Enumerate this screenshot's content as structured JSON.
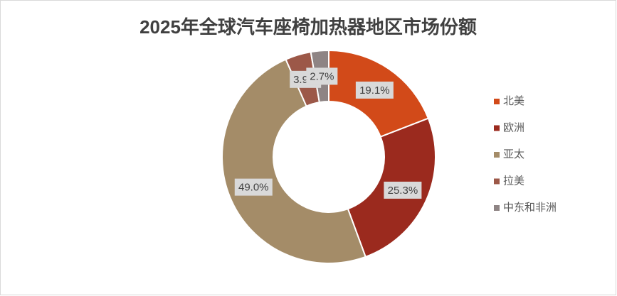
{
  "chart_data": {
    "type": "donut",
    "title": "2025年全球汽车座椅加热器地区市场份额",
    "categories": [
      "北美",
      "欧洲",
      "亚太",
      "拉美",
      "中东和非洲"
    ],
    "series": [
      {
        "name": "市场份额",
        "values": [
          19.1,
          25.3,
          49.0,
          3.9,
          2.7
        ],
        "value_labels": [
          "19.1%",
          "25.3%",
          "49.0%",
          "3.9%",
          "2.7%"
        ]
      }
    ],
    "colors": [
      "#d24a19",
      "#9b2a1e",
      "#a48c68",
      "#9c5848",
      "#8e8484"
    ],
    "legend": "right"
  }
}
